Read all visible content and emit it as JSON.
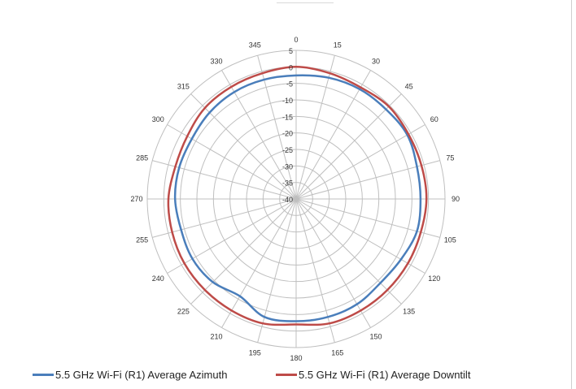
{
  "chart_data": {
    "type": "polar-line",
    "angle_labels": [
      "0",
      "15",
      "30",
      "45",
      "60",
      "75",
      "90",
      "105",
      "120",
      "135",
      "150",
      "165",
      "180",
      "195",
      "210",
      "225",
      "240",
      "255",
      "270",
      "285",
      "300",
      "315",
      "330",
      "345"
    ],
    "radial_labels": [
      "5",
      "0",
      "-5",
      "-10",
      "-15",
      "-20",
      "-25",
      "-30",
      "-35",
      "-40"
    ],
    "rlim": [
      -40,
      5
    ],
    "grid": true,
    "legend_position": "bottom",
    "series": [
      {
        "name": "5.5 GHz Wi-Fi (R1) Average Azimuth",
        "color": "#4a7ebb",
        "angles": [
          0,
          15,
          30,
          45,
          60,
          75,
          90,
          105,
          120,
          135,
          150,
          165,
          180,
          195,
          210,
          225,
          240,
          255,
          270,
          285,
          300,
          315,
          330,
          345
        ],
        "values": [
          -2.6,
          -2.0,
          -1.6,
          -1.6,
          -1.2,
          -2.2,
          -2.4,
          -2.2,
          -3.4,
          -4.0,
          -3.2,
          -3.0,
          -3.0,
          -3.0,
          -6.0,
          -4.4,
          -3.8,
          -4.0,
          -3.4,
          -3.4,
          -3.6,
          -3.0,
          -2.6,
          -2.6
        ]
      },
      {
        "name": "5.5 GHz Wi-Fi (R1) Average Downtilt",
        "color": "#be4b48",
        "angles": [
          0,
          15,
          30,
          45,
          60,
          75,
          90,
          105,
          120,
          135,
          150,
          165,
          180,
          195,
          210,
          225,
          240,
          255,
          270,
          285,
          300,
          315,
          330,
          345
        ],
        "values": [
          0.0,
          -0.6,
          -1.0,
          -0.4,
          -0.8,
          -0.8,
          -0.6,
          -1.0,
          -1.0,
          -1.0,
          -1.0,
          -1.0,
          -2.0,
          -1.0,
          -1.0,
          -1.0,
          -1.0,
          -1.2,
          -1.4,
          -2.2,
          -2.0,
          -1.0,
          -0.8,
          -0.6
        ]
      }
    ]
  }
}
